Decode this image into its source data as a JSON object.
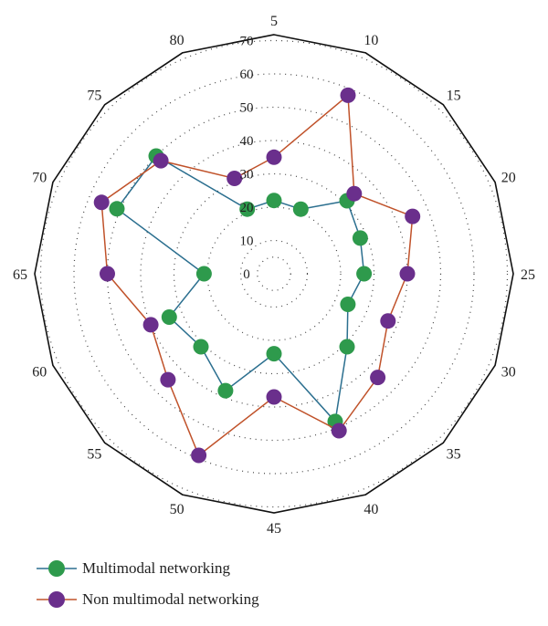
{
  "chart_data": {
    "type": "radar",
    "categories": [
      "5",
      "10",
      "15",
      "20",
      "25",
      "30",
      "35",
      "40",
      "45",
      "50",
      "55",
      "60",
      "65",
      "70",
      "75",
      "80"
    ],
    "ring_ticks": [
      0,
      10,
      20,
      30,
      40,
      50,
      60,
      70
    ],
    "rmax": 70,
    "series": [
      {
        "name": "Multimodal networking",
        "color": "#2e9a4c",
        "line_color": "#2b6f8f",
        "values": [
          22,
          21,
          31,
          28,
          27,
          24,
          31,
          48,
          24,
          38,
          31,
          34,
          21,
          51,
          50,
          21
        ]
      },
      {
        "name": "Non multimodal networking",
        "color": "#6a2f8c",
        "line_color": "#c0522a",
        "values": [
          35,
          58,
          34,
          45,
          40,
          37,
          44,
          51,
          37,
          59,
          45,
          40,
          50,
          56,
          48,
          31
        ]
      }
    ],
    "legend_position": "bottom-left"
  }
}
